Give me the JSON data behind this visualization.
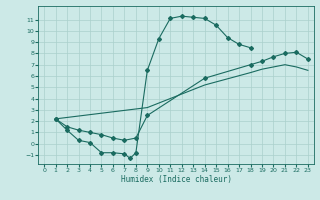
{
  "title": "",
  "xlabel": "Humidex (Indice chaleur)",
  "bg_color": "#cce9e7",
  "grid_color": "#aad0cc",
  "line_color": "#1a6b60",
  "xlim": [
    -0.5,
    23.5
  ],
  "ylim": [
    -1.8,
    12.2
  ],
  "xticks": [
    0,
    1,
    2,
    3,
    4,
    5,
    6,
    7,
    8,
    9,
    10,
    11,
    12,
    13,
    14,
    15,
    16,
    17,
    18,
    19,
    20,
    21,
    22,
    23
  ],
  "yticks": [
    -1,
    0,
    1,
    2,
    3,
    4,
    5,
    6,
    7,
    8,
    9,
    10,
    11
  ],
  "curve1_x": [
    1,
    2,
    3,
    4,
    5,
    6,
    7,
    7.5,
    8,
    9,
    10,
    11,
    12,
    13,
    14,
    15,
    16,
    17,
    18
  ],
  "curve1_y": [
    2.2,
    1.2,
    0.3,
    0.1,
    -0.8,
    -0.8,
    -0.9,
    -1.3,
    -0.8,
    6.5,
    9.3,
    11.1,
    11.3,
    11.2,
    11.1,
    10.5,
    9.4,
    8.8,
    8.5
  ],
  "curve2_x": [
    1,
    2,
    3,
    4,
    5,
    6,
    7,
    8,
    9,
    14,
    18,
    19,
    20,
    21,
    22,
    23
  ],
  "curve2_y": [
    2.2,
    1.5,
    1.2,
    1.0,
    0.8,
    0.5,
    0.3,
    0.5,
    2.5,
    5.8,
    7.0,
    7.3,
    7.7,
    8.0,
    8.1,
    7.5
  ],
  "curve3_x": [
    1,
    9,
    14,
    18,
    19,
    20,
    21,
    22,
    23
  ],
  "curve3_y": [
    2.2,
    3.2,
    5.2,
    6.3,
    6.6,
    6.8,
    7.0,
    6.8,
    6.5
  ],
  "marker_x1": [
    1,
    2,
    3,
    4,
    5,
    6,
    7,
    7.5,
    8,
    9,
    10,
    11,
    12,
    13,
    14,
    15,
    16,
    17,
    18
  ],
  "marker_x2": [
    1,
    2,
    3,
    4,
    5,
    6,
    7,
    8,
    9,
    14,
    18,
    19,
    20,
    21,
    22,
    23
  ]
}
